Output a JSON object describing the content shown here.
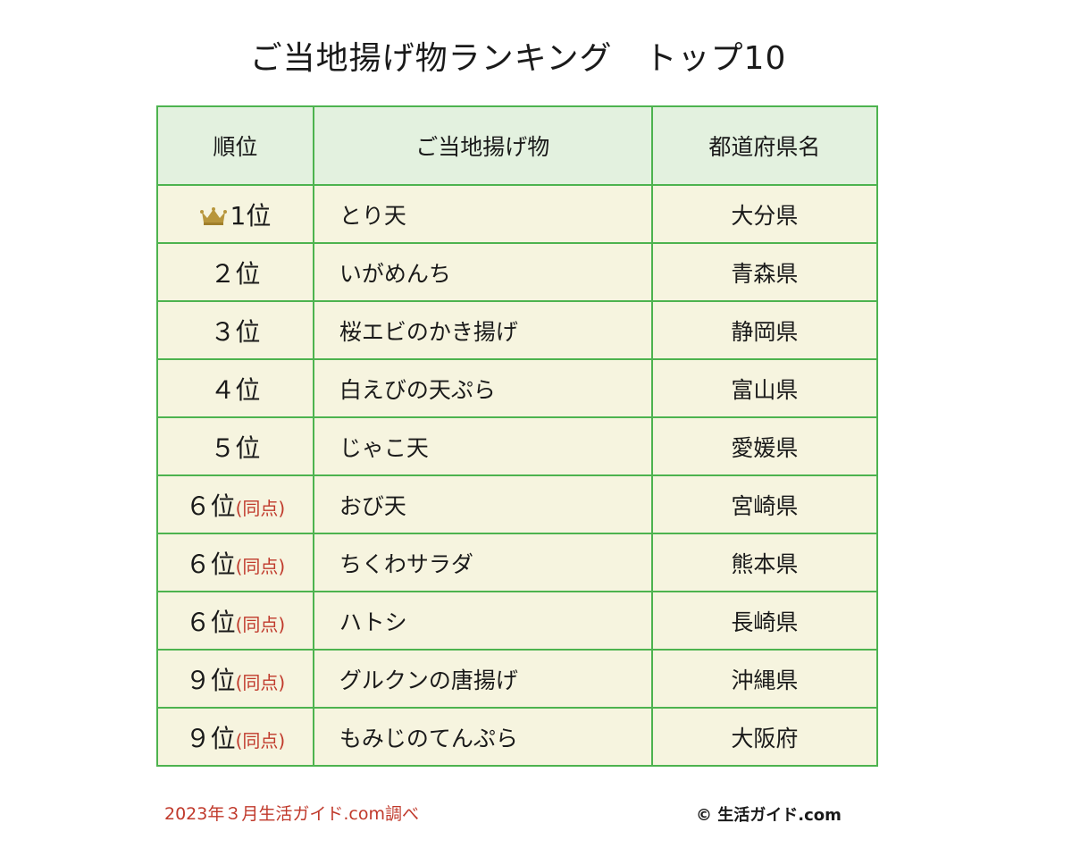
{
  "title": {
    "main": "ご当地揚げ物ランキング",
    "sub": "トップ10"
  },
  "table": {
    "headers": [
      "順位",
      "ご当地揚げ物",
      "都道府県名"
    ],
    "rows": [
      {
        "rank": "1位",
        "tie": "",
        "crown": true,
        "food": "とり天",
        "prefecture": "大分県"
      },
      {
        "rank": "２位",
        "tie": "",
        "crown": false,
        "food": "いがめんち",
        "prefecture": "青森県"
      },
      {
        "rank": "３位",
        "tie": "",
        "crown": false,
        "food": "桜エビのかき揚げ",
        "prefecture": "静岡県"
      },
      {
        "rank": "４位",
        "tie": "",
        "crown": false,
        "food": "白えびの天ぷら",
        "prefecture": "富山県"
      },
      {
        "rank": "５位",
        "tie": "",
        "crown": false,
        "food": "じゃこ天",
        "prefecture": "愛媛県"
      },
      {
        "rank": "６位",
        "tie": "(同点)",
        "crown": false,
        "food": "おび天",
        "prefecture": "宮崎県"
      },
      {
        "rank": "６位",
        "tie": "(同点)",
        "crown": false,
        "food": "ちくわサラダ",
        "prefecture": "熊本県"
      },
      {
        "rank": "６位",
        "tie": "(同点)",
        "crown": false,
        "food": "ハトシ",
        "prefecture": "長崎県"
      },
      {
        "rank": "９位",
        "tie": "(同点)",
        "crown": false,
        "food": "グルクンの唐揚げ",
        "prefecture": "沖縄県"
      },
      {
        "rank": "９位",
        "tie": "(同点)",
        "crown": false,
        "food": "もみじのてんぷら",
        "prefecture": "大阪府"
      }
    ]
  },
  "footer": {
    "source": "2023年３月生活ガイド.com調べ",
    "copyright": "© 生活ガイド.com"
  },
  "colors": {
    "border": "#4db34f",
    "header_bg": "#e3f1df",
    "row_bg": "#f6f4df",
    "accent_red": "#c0392b",
    "crown_gold": "#b8963c"
  },
  "icons": {
    "crown": "crown-icon"
  }
}
